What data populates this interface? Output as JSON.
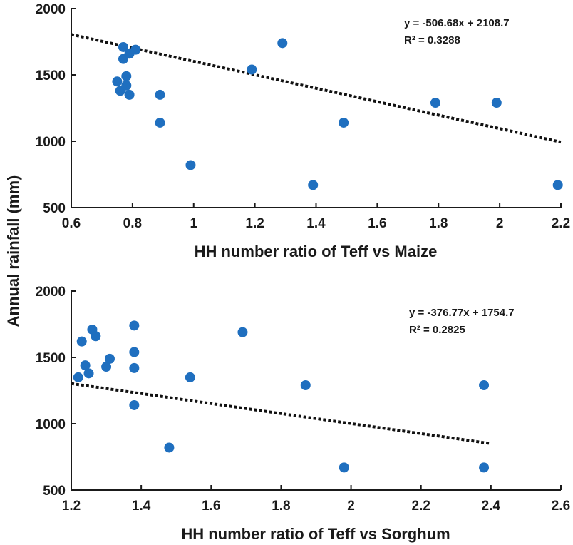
{
  "figure": {
    "shared_ylabel": "Annual rainfall (mm)"
  },
  "chart_data": [
    {
      "type": "scatter",
      "title": "",
      "xlabel": "HH number ratio of Teff vs Maize",
      "ylabel": "Annual rainfall (mm)",
      "xlim": [
        0.6,
        2.2
      ],
      "ylim": [
        500,
        2000
      ],
      "xticks": [
        0.6,
        0.8,
        1,
        1.2,
        1.4,
        1.6,
        1.8,
        2,
        2.2
      ],
      "xtick_labels": [
        "0.6",
        "0.8",
        "1",
        "1.2",
        "1.4",
        "1.6",
        "1.8",
        "2",
        "2.2"
      ],
      "yticks": [
        500,
        1000,
        1500,
        2000
      ],
      "ytick_labels": [
        "500",
        "1000",
        "1500",
        "2000"
      ],
      "points": [
        [
          0.77,
          1710
        ],
        [
          0.81,
          1690
        ],
        [
          0.79,
          1660
        ],
        [
          0.77,
          1620
        ],
        [
          0.78,
          1490
        ],
        [
          0.75,
          1450
        ],
        [
          0.76,
          1380
        ],
        [
          0.78,
          1420
        ],
        [
          0.79,
          1350
        ],
        [
          0.89,
          1350
        ],
        [
          0.89,
          1140
        ],
        [
          0.99,
          820
        ],
        [
          1.19,
          1540
        ],
        [
          1.29,
          1740
        ],
        [
          1.39,
          670
        ],
        [
          1.49,
          1140
        ],
        [
          1.79,
          1290
        ],
        [
          1.99,
          1290
        ],
        [
          2.19,
          670
        ]
      ],
      "trendline": {
        "slope": -506.68,
        "intercept": 2108.7,
        "x_range": [
          0.6,
          2.2
        ]
      },
      "equation": "y = -506.68x + 2108.7",
      "r2": "R² = 0.3288",
      "grid": false
    },
    {
      "type": "scatter",
      "title": "",
      "xlabel": "HH number ratio of Teff vs Sorghum",
      "ylabel": "Annual rainfall (mm)",
      "xlim": [
        1.2,
        2.6
      ],
      "ylim": [
        500,
        2000
      ],
      "xticks": [
        1.2,
        1.4,
        1.6,
        1.8,
        2,
        2.2,
        2.4,
        2.6
      ],
      "xtick_labels": [
        "1.2",
        "1.4",
        "1.6",
        "1.8",
        "2",
        "2.2",
        "2.4",
        "2.6"
      ],
      "yticks": [
        500,
        1000,
        1500,
        2000
      ],
      "ytick_labels": [
        "500",
        "1000",
        "1500",
        "2000"
      ],
      "points": [
        [
          1.23,
          1620
        ],
        [
          1.26,
          1710
        ],
        [
          1.27,
          1660
        ],
        [
          1.24,
          1440
        ],
        [
          1.25,
          1380
        ],
        [
          1.22,
          1350
        ],
        [
          1.3,
          1430
        ],
        [
          1.31,
          1490
        ],
        [
          1.38,
          1740
        ],
        [
          1.38,
          1540
        ],
        [
          1.38,
          1420
        ],
        [
          1.38,
          1140
        ],
        [
          1.48,
          820
        ],
        [
          1.54,
          1350
        ],
        [
          1.69,
          1690
        ],
        [
          1.87,
          1290
        ],
        [
          1.98,
          670
        ],
        [
          2.38,
          1290
        ],
        [
          2.38,
          670
        ]
      ],
      "trendline": {
        "slope": -376.77,
        "intercept": 1754.7,
        "x_range": [
          1.2,
          2.4
        ]
      },
      "equation": "y = -376.77x + 1754.7",
      "r2": "R² = 0.2825",
      "grid": false
    }
  ]
}
